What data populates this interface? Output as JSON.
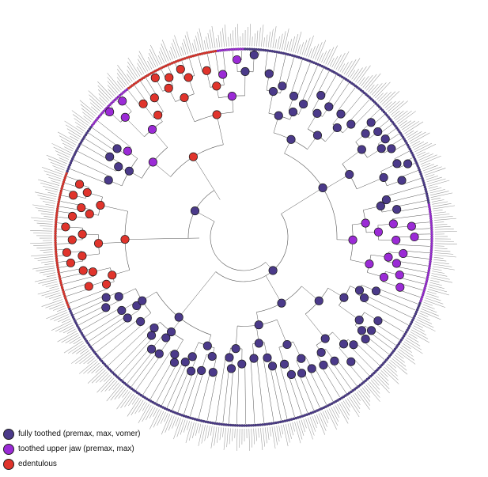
{
  "legend": {
    "items": [
      {
        "key": "fully",
        "label": "fully toothed (premax, max, vomer)",
        "color": "#4b3a8a"
      },
      {
        "key": "upper",
        "label": "toothed upper jaw (premax, max)",
        "color": "#9b2bd6"
      },
      {
        "key": "edent",
        "label": "edentulous",
        "color": "#e0342c"
      }
    ]
  },
  "colors": {
    "fully": "#4b3a8a",
    "upper": "#9b2bd6",
    "edent": "#e0342c",
    "branch": "#555555",
    "ring": "#3a3370"
  },
  "tree": {
    "tip_count": 520,
    "clades": [
      {
        "state": "fully",
        "from_deg": -84,
        "to_deg": -10
      },
      {
        "state": "upper",
        "from_deg": -10,
        "to_deg": 20
      },
      {
        "state": "fully",
        "from_deg": 20,
        "to_deg": 100
      },
      {
        "state": "fully",
        "from_deg": 100,
        "to_deg": 120
      },
      {
        "state": "fully",
        "from_deg": 120,
        "to_deg": 158
      },
      {
        "state": "edent",
        "from_deg": 158,
        "to_deg": 200
      },
      {
        "state": "fully",
        "from_deg": 200,
        "to_deg": 216
      },
      {
        "state": "upper",
        "from_deg": 216,
        "to_deg": 232
      },
      {
        "state": "edent",
        "from_deg": 232,
        "to_deg": 262
      },
      {
        "state": "upper",
        "from_deg": 262,
        "to_deg": 270
      }
    ]
  }
}
